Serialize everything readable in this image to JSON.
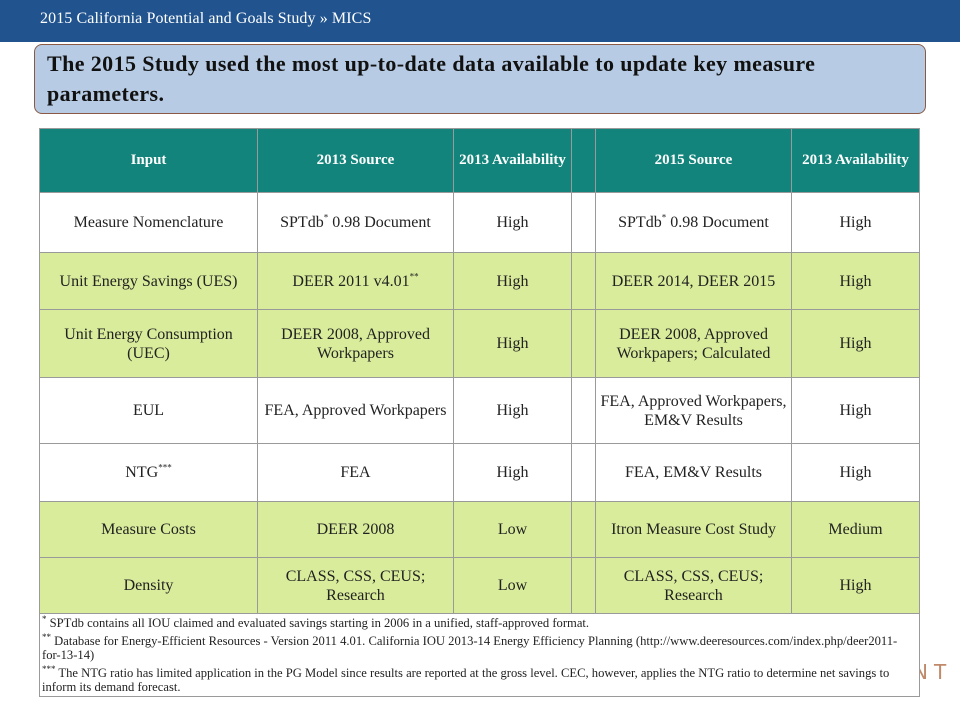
{
  "header": {
    "breadcrumb": "2015 California Potential and Goals Study » MICS"
  },
  "headline": {
    "text": "The 2015 Study used the most up-to-date data available to update key measure parameters."
  },
  "logo_fragment": "NT",
  "table": {
    "columns": [
      "Input",
      "2013 Source",
      "2013 Availability",
      "",
      "2015 Source",
      "2013 Availability"
    ],
    "rows": [
      {
        "style": "white",
        "input": "Measure Nomenclature",
        "src2013": "SPTdb",
        "src2013_sup": "*",
        "src2013_tail": " 0.98 Document",
        "avail2013": "High",
        "src2015": "SPTdb",
        "src2015_sup": "*",
        "src2015_tail": " 0.98 Document",
        "avail2015": "High"
      },
      {
        "style": "green",
        "input": "Unit Energy Savings (UES)",
        "src2013": "DEER 2011 v4.01",
        "src2013_sup": "**",
        "src2013_tail": "",
        "avail2013": "High",
        "src2015": "DEER 2014, DEER 2015",
        "src2015_sup": "",
        "src2015_tail": "",
        "avail2015": "High"
      },
      {
        "style": "green",
        "input": "Unit Energy Consumption (UEC)",
        "src2013": "DEER 2008, Approved Workpapers",
        "src2013_sup": "",
        "src2013_tail": "",
        "avail2013": "High",
        "src2015": "DEER 2008, Approved Workpapers; Calculated",
        "src2015_sup": "",
        "src2015_tail": "",
        "avail2015": "High"
      },
      {
        "style": "white",
        "input": "EUL",
        "src2013": "FEA, Approved Workpapers",
        "src2013_sup": "",
        "src2013_tail": "",
        "avail2013": "High",
        "src2015": "FEA, Approved Workpapers, EM&V Results",
        "src2015_sup": "",
        "src2015_tail": "",
        "avail2015": "High"
      },
      {
        "style": "white",
        "input": "NTG",
        "input_sup": "***",
        "src2013": "FEA",
        "src2013_sup": "",
        "src2013_tail": "",
        "avail2013": "High",
        "src2015": "FEA, EM&V Results",
        "src2015_sup": "",
        "src2015_tail": "",
        "avail2015": "High"
      },
      {
        "style": "green",
        "input": "Measure Costs",
        "src2013": "DEER 2008",
        "src2013_sup": "",
        "src2013_tail": "",
        "avail2013": "Low",
        "src2015": "Itron Measure Cost Study",
        "src2015_sup": "",
        "src2015_tail": "",
        "avail2015": "Medium"
      },
      {
        "style": "green",
        "input": "Density",
        "src2013": "CLASS, CSS, CEUS; Research",
        "src2013_sup": "",
        "src2013_tail": "",
        "avail2013": "Low",
        "src2015": "CLASS, CSS, CEUS; Research",
        "src2015_sup": "",
        "src2015_tail": "",
        "avail2015": "High"
      }
    ],
    "footnotes": [
      {
        "mark": "*",
        "text": " SPTdb contains all IOU claimed and evaluated savings starting in 2006 in a unified, staff-approved format."
      },
      {
        "mark": "**",
        "text": " Database for Energy-Efficient Resources - Version 2011 4.01. California IOU 2013-14 Energy Efficiency Planning (http://www.deeresources.com/index.php/deer2011-for-13-14)"
      },
      {
        "mark": "***",
        "text": " The NTG ratio has limited application in the PG Model since results are reported at the gross level. CEC, however, applies the NTG ratio to determine net savings to inform its demand forecast."
      }
    ]
  },
  "colors": {
    "top_bar": "#21548f",
    "headline_bg": "#b7cce4",
    "table_header": "#13847b",
    "row_green": "#d9ec9b",
    "row_white": "#ffffff"
  }
}
